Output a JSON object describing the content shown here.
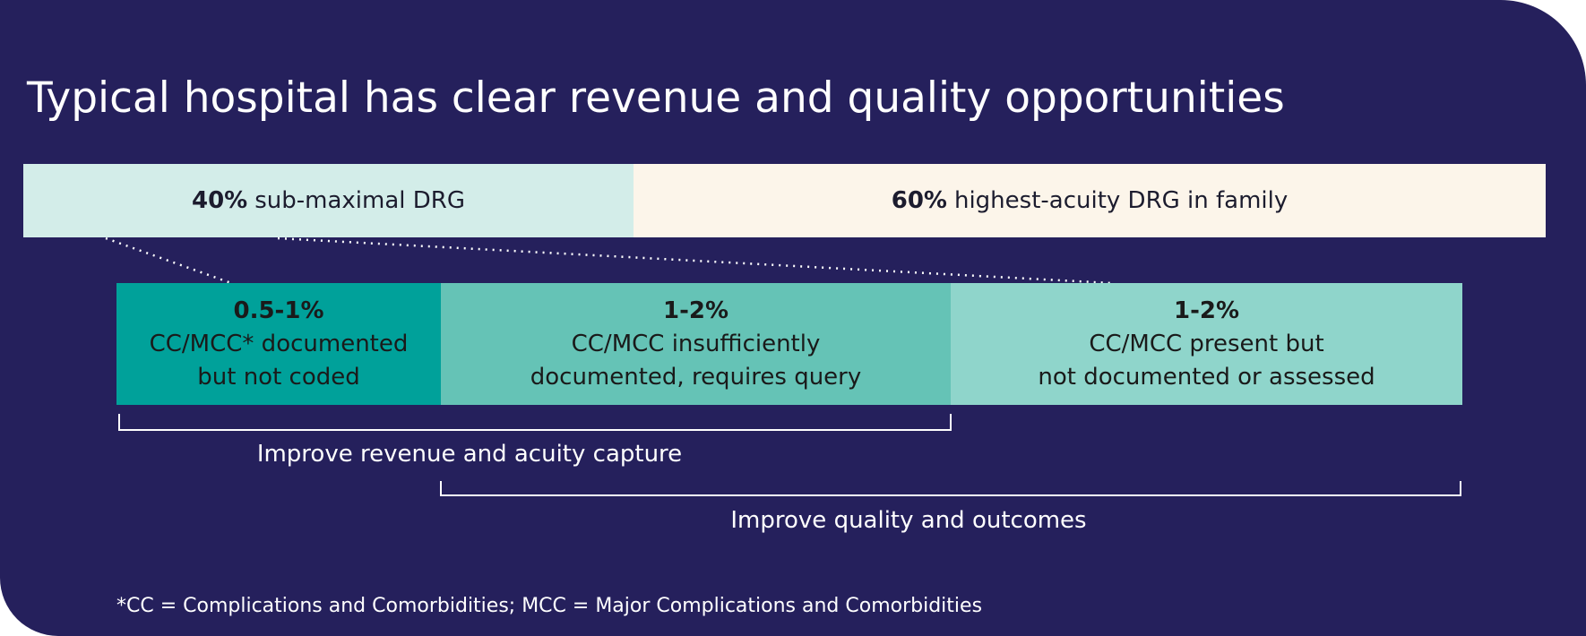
{
  "title": "Typical hospital has clear revenue and quality opportunities",
  "bar": {
    "segments": [
      {
        "value": "40%",
        "label": "sub-maximal DRG"
      },
      {
        "value": "60%",
        "label": "highest-acuity DRG in family"
      }
    ]
  },
  "gaps": [
    {
      "value": "0.5-1%",
      "lines": [
        "CC/MCC* documented",
        "but not coded"
      ]
    },
    {
      "value": "1-2%",
      "lines": [
        "CC/MCC insufficiently",
        "documented, requires query"
      ]
    },
    {
      "value": "1-2%",
      "lines": [
        "CC/MCC present but",
        "not documented or assessed"
      ]
    }
  ],
  "brackets": [
    "Improve revenue and acuity capture",
    "Improve quality and outcomes"
  ],
  "footnote": "*CC = Complications and Comorbidities; MCC = Major Complications and Comorbidities"
}
